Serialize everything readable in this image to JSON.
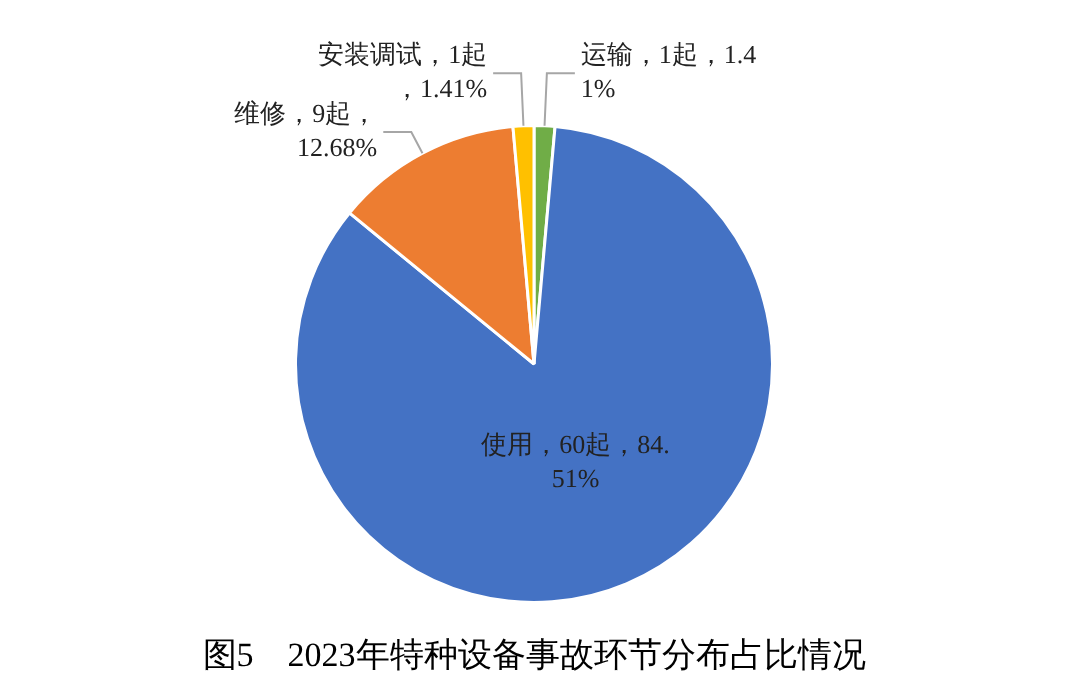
{
  "chart_data": {
    "type": "pie",
    "title": "图5　2023年特种设备事故环节分布占比情况",
    "categories": [
      "运输",
      "使用",
      "维修",
      "安装调试"
    ],
    "values": [
      1,
      60,
      9,
      1
    ],
    "colors": [
      "#70ad47",
      "#4472c4",
      "#ed7d31",
      "#ffc000"
    ],
    "value_labels": [
      "1起，1.41%",
      "60起，84.51%",
      "9起，12.68%",
      "1起，1.41%"
    ],
    "legend": false
  }
}
